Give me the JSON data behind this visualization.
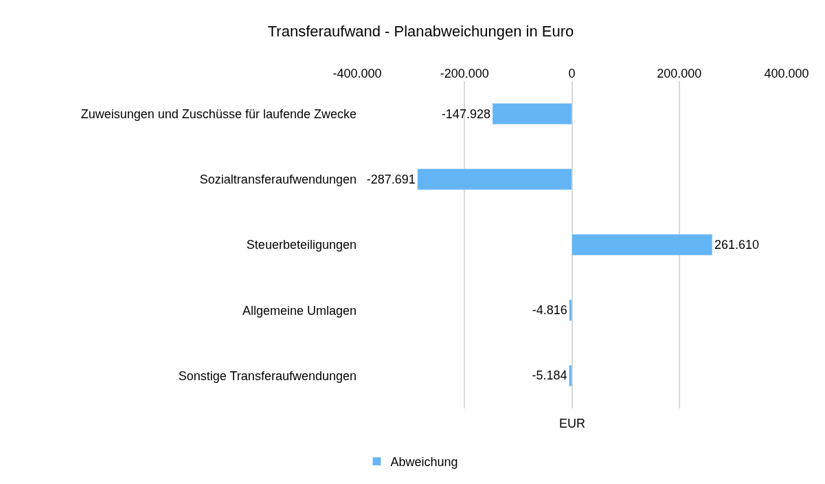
{
  "chart_data": {
    "type": "bar",
    "orientation": "horizontal",
    "title": "Transferaufwand - Planabweichungen in Euro",
    "xlabel": "EUR",
    "categories": [
      "Zuweisungen und Zuschüsse für laufende Zwecke",
      "Sozialtransferaufwendungen",
      "Steuerbeteiligungen",
      "Allgemeine Umlagen",
      "Sonstige Transferaufwendungen"
    ],
    "series": [
      {
        "name": "Abweichung",
        "color": "#63b5f5",
        "values": [
          -147928,
          -287691,
          261610,
          -4816,
          -5184
        ],
        "value_labels": [
          "-147.928",
          "-287.691",
          "261.610",
          "-4.816",
          "-5.184"
        ]
      }
    ],
    "xlim": [
      -400000,
      400000
    ],
    "xticks": [
      {
        "value": -400000,
        "label": "-400.000"
      },
      {
        "value": -200000,
        "label": "-200.000"
      },
      0,
      {
        "value": 200000,
        "label": "200.000"
      },
      {
        "value": 400000,
        "label": "400.000"
      }
    ],
    "grid": "x",
    "legend": "bottom"
  }
}
